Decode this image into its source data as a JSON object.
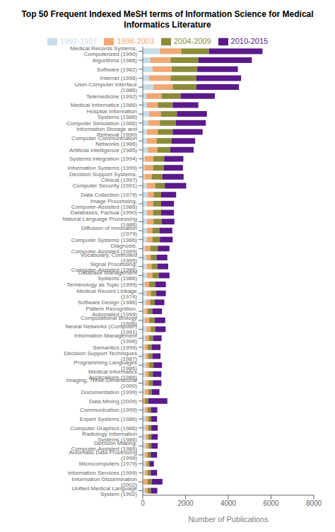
{
  "chart_data": {
    "type": "bar",
    "orientation": "horizontal",
    "stacked": true,
    "title": "Top 50 Frequent Indexed MeSH terms of Information Science for Medical Informatics Literature",
    "xlabel": "Number of Publications",
    "categories": [
      "Unified Medical Language System (1992)",
      "Information Dissemination (2002)",
      "Information Services (1999)",
      "Microcomputers (1979)",
      "Automatic Data Processing (1999)",
      "Decision Making, Computer-Assisted (1986)",
      "Radiology Information Systems (1986)",
      "Computer Graphics (1986)",
      "Expert Systems (1986)",
      "Communication (1999)",
      "Data Mining (2009)",
      "Documentation (1999)",
      "Imaging, Three-Dimensional (1000)",
      "Medical Informatics Applications (1986)",
      "Programming Languages (1986)",
      "Decision Support Techniques (1987)",
      "Semantics (1999)",
      "Information Management (1996)",
      "Neural Networks (Computer) (1991)",
      "Computational Biology (1996)",
      "Pattern Recognition, Automated (1999)",
      "Software Design (1986)",
      "Medical Record Linkage (1974)",
      "Terminology as Topic (1999)",
      "Database Management Systems (1986)",
      "Signal Processing, Computer-Assisted (1986)",
      "Vocabulary, Controlled (1995)",
      "Diagnosis, Computer-Assisted (1999)",
      "Computer Systems (1986)",
      "Diffusion of Innovation (1979)",
      "Natural Language Processing (1986)",
      "Databases, Factual (1990)",
      "Image Processing, Computer-Assisted (1986)",
      "Data Collection (1979)",
      "Computer Security (1991)",
      "Decision Support Systems, Clinical (1997)",
      "Information Systems (1999)",
      "Systems Integration (1994)",
      "Artificial Intelligence (1985)",
      "Computer Communication Networks (1986)",
      "Information Storage and Retrieval (1990)",
      "Computer Simulation (1986)",
      "Hospital Information Systems (1986)",
      "Medical Informatics (1986)",
      "Telemedicine (1992)",
      "User-Computer Interface (1986)",
      "Internet (1996)",
      "Software (1982)",
      "Algorithms (1986)",
      "Medical Records Systems, Computerized (1990)"
    ],
    "series": [
      {
        "name": "1992-1997",
        "color": "#c8dce8",
        "values": [
          100,
          20,
          90,
          120,
          90,
          120,
          120,
          120,
          130,
          100,
          0,
          100,
          120,
          120,
          150,
          120,
          80,
          130,
          170,
          100,
          80,
          160,
          180,
          100,
          200,
          190,
          170,
          100,
          200,
          200,
          200,
          200,
          200,
          230,
          180,
          80,
          80,
          100,
          230,
          200,
          200,
          250,
          300,
          200,
          170,
          500,
          300,
          450,
          350,
          800
        ]
      },
      {
        "name": "1998-2003",
        "color": "#f0a875",
        "values": [
          130,
          200,
          130,
          100,
          130,
          130,
          130,
          130,
          130,
          130,
          100,
          150,
          150,
          150,
          150,
          130,
          150,
          150,
          200,
          200,
          150,
          180,
          200,
          200,
          250,
          220,
          200,
          250,
          250,
          250,
          300,
          280,
          280,
          280,
          400,
          350,
          400,
          400,
          450,
          450,
          500,
          550,
          550,
          500,
          700,
          900,
          1000,
          900,
          950,
          1000
        ]
      },
      {
        "name": "2004-2009",
        "color": "#8b8b3a",
        "values": [
          150,
          200,
          150,
          100,
          150,
          150,
          150,
          150,
          130,
          150,
          150,
          180,
          200,
          200,
          200,
          200,
          200,
          200,
          220,
          250,
          220,
          220,
          250,
          280,
          300,
          280,
          280,
          350,
          350,
          330,
          380,
          380,
          380,
          350,
          450,
          480,
          500,
          500,
          600,
          700,
          700,
          750,
          750,
          700,
          900,
          1100,
          1200,
          1200,
          1300,
          1300
        ]
      },
      {
        "name": "2010-2015",
        "color": "#5b1a8a",
        "values": [
          300,
          500,
          300,
          200,
          300,
          300,
          300,
          300,
          280,
          300,
          900,
          350,
          400,
          400,
          400,
          380,
          400,
          400,
          480,
          500,
          450,
          450,
          450,
          500,
          500,
          500,
          500,
          550,
          600,
          600,
          600,
          600,
          600,
          700,
          1000,
          1000,
          900,
          900,
          1100,
          1100,
          1400,
          1400,
          1400,
          1200,
          1600,
          2000,
          2100,
          1900,
          2500,
          2500
        ]
      }
    ],
    "xlim": [
      0,
      8000
    ],
    "xticks": [
      0,
      2000,
      4000,
      6000,
      8000
    ],
    "grid": false,
    "legend": "top"
  }
}
